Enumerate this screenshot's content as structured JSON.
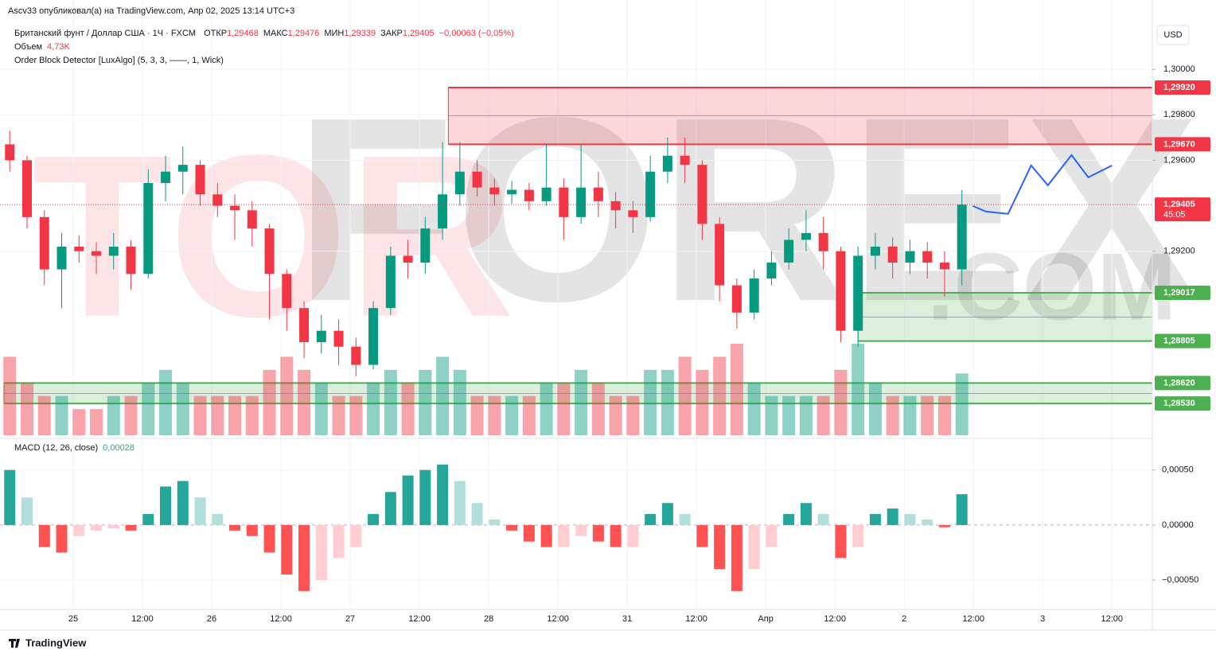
{
  "header": {
    "published": "Ascv33 опубликовал(а) на TradingView.com, Апр 02, 2025 13:14 UTC+3",
    "symbol": "Британский фунт / Доллар США · 1Ч · FXCM",
    "ohlc": [
      [
        "ОТКР",
        "1,29468"
      ],
      [
        "МАКС",
        "1,29476"
      ],
      [
        "МИН",
        "1,29339"
      ],
      [
        "ЗАКР",
        "1,29405"
      ]
    ],
    "change": "−0,00063 (−0,05%)",
    "volume_label": "Объем",
    "volume_value": "4,73K",
    "indicator": "Order Block Detector [LuxAlgo] (5, 3, 3, ——, 1, Wick)",
    "currency": "USD"
  },
  "watermark": [
    "TOR",
    "FOREX",
    ".COM"
  ],
  "footer": "TradingView",
  "chart_data": [
    {
      "type": "candlestick",
      "up_color": "#089981",
      "down_color": "#f23645",
      "x": [
        0,
        3,
        6,
        9,
        12,
        15,
        18,
        21,
        24,
        27,
        30,
        33,
        36,
        39,
        42,
        45,
        48,
        51,
        54,
        57,
        60,
        63,
        66,
        69,
        72,
        75,
        78,
        81,
        84,
        87,
        90,
        93,
        96,
        99,
        102,
        105,
        108,
        111,
        114,
        117,
        120,
        123,
        126,
        129,
        132,
        135,
        138,
        141,
        144,
        147,
        150,
        153,
        156,
        159,
        162,
        165
      ],
      "open": [
        1.2967,
        1.296,
        1.2935,
        1.2912,
        1.2922,
        1.292,
        1.2918,
        1.2922,
        1.291,
        1.295,
        1.2955,
        1.2958,
        1.2945,
        1.294,
        1.2938,
        1.293,
        1.291,
        1.2895,
        1.288,
        1.2885,
        1.2878,
        1.287,
        1.2895,
        1.2918,
        1.2915,
        1.293,
        1.2945,
        1.2955,
        1.2948,
        1.2945,
        1.2947,
        1.2942,
        1.2948,
        1.2935,
        1.2948,
        1.2942,
        1.2938,
        1.2935,
        1.2955,
        1.2962,
        1.2958,
        1.2932,
        1.2905,
        1.2893,
        1.2908,
        1.2915,
        1.2925,
        1.2928,
        1.292,
        1.2885,
        1.2918,
        1.2922,
        1.2915,
        1.292,
        1.2915,
        1.2912
      ],
      "high": [
        1.2973,
        1.2962,
        1.2938,
        1.2928,
        1.2927,
        1.2924,
        1.2928,
        1.2925,
        1.2956,
        1.2962,
        1.2966,
        1.296,
        1.295,
        1.2945,
        1.2942,
        1.2932,
        1.2912,
        1.2898,
        1.2892,
        1.289,
        1.2882,
        1.2898,
        1.2922,
        1.2925,
        1.2935,
        1.2968,
        1.2968,
        1.296,
        1.2952,
        1.2951,
        1.295,
        1.2967,
        1.2952,
        1.2967,
        1.2955,
        1.2946,
        1.2942,
        1.2962,
        1.297,
        1.297,
        1.296,
        1.2935,
        1.2908,
        1.2912,
        1.292,
        1.293,
        1.2938,
        1.2935,
        1.2922,
        1.2922,
        1.2928,
        1.2926,
        1.2925,
        1.2924,
        1.292,
        1.2947
      ],
      "low": [
        1.2955,
        1.293,
        1.2905,
        1.2895,
        1.2915,
        1.291,
        1.2912,
        1.2903,
        1.2908,
        1.2942,
        1.2945,
        1.294,
        1.2935,
        1.2925,
        1.2922,
        1.289,
        1.2885,
        1.2873,
        1.2875,
        1.287,
        1.2865,
        1.2868,
        1.2892,
        1.2908,
        1.291,
        1.2925,
        1.294,
        1.2944,
        1.294,
        1.2941,
        1.2938,
        1.294,
        1.2925,
        1.2932,
        1.2935,
        1.293,
        1.2928,
        1.2933,
        1.295,
        1.295,
        1.2925,
        1.2898,
        1.2886,
        1.289,
        1.2905,
        1.2912,
        1.292,
        1.2912,
        1.288,
        1.2878,
        1.2912,
        1.2908,
        1.291,
        1.2908,
        1.29,
        1.2905
      ],
      "close": [
        1.296,
        1.2935,
        1.2912,
        1.2922,
        1.292,
        1.2918,
        1.2922,
        1.291,
        1.295,
        1.2955,
        1.2958,
        1.2945,
        1.294,
        1.2938,
        1.293,
        1.291,
        1.2895,
        1.288,
        1.2885,
        1.2878,
        1.287,
        1.2895,
        1.2918,
        1.2915,
        1.293,
        1.2945,
        1.2955,
        1.2948,
        1.2945,
        1.2947,
        1.2942,
        1.2948,
        1.2935,
        1.2948,
        1.2942,
        1.2938,
        1.2935,
        1.2955,
        1.2962,
        1.2958,
        1.2932,
        1.2905,
        1.2893,
        1.2908,
        1.2915,
        1.2925,
        1.2928,
        1.292,
        1.2885,
        1.2918,
        1.2922,
        1.2915,
        1.292,
        1.2915,
        1.2912,
        1.29405
      ],
      "volume": [
        6,
        4,
        3,
        3,
        2,
        2,
        3,
        3,
        4,
        5,
        4,
        3,
        3,
        3,
        3,
        5,
        6,
        5,
        4,
        3,
        3,
        4,
        5,
        4,
        5,
        6,
        5,
        3,
        3,
        3,
        3,
        4,
        4,
        5,
        4,
        3,
        3,
        5,
        5,
        6,
        5,
        6,
        7,
        4,
        3,
        3,
        3,
        3,
        5,
        7,
        4,
        3,
        3,
        3,
        3,
        4.73
      ],
      "xlim": [
        -1,
        198
      ],
      "ylim": [
        1.2838,
        1.302
      ],
      "yticks": [
        {
          "value": 1.3,
          "label": "1,30000"
        },
        {
          "value": 1.298,
          "label": "1,29800"
        },
        {
          "value": 1.296,
          "label": "1,29600"
        },
        {
          "value": 1.292,
          "label": "1,29200"
        }
      ],
      "xticks": [
        {
          "value": 11,
          "label": "25"
        },
        {
          "value": 23,
          "label": "12:00"
        },
        {
          "value": 35,
          "label": "26"
        },
        {
          "value": 47,
          "label": "12:00"
        },
        {
          "value": 59,
          "label": "27"
        },
        {
          "value": 71,
          "label": "12:00"
        },
        {
          "value": 83,
          "label": "28"
        },
        {
          "value": 95,
          "label": "12:00"
        },
        {
          "value": 107,
          "label": "31"
        },
        {
          "value": 119,
          "label": "12:00"
        },
        {
          "value": 131,
          "label": "Апр"
        },
        {
          "value": 143,
          "label": "12:00"
        },
        {
          "value": 155,
          "label": "2"
        },
        {
          "value": 167,
          "label": "12:00"
        },
        {
          "value": 179,
          "label": "3"
        },
        {
          "value": 191,
          "label": "12:00"
        }
      ],
      "levels": [
        {
          "value": 1.2992,
          "label": "1,29920",
          "color": "#f23645"
        },
        {
          "value": 1.2967,
          "label": "1,29670",
          "color": "#f23645"
        },
        {
          "value": 1.29405,
          "label": "1,29405",
          "color": "#f23645",
          "countdown": "45:05"
        },
        {
          "value": 1.29017,
          "label": "1,29017",
          "color": "#4caf50"
        },
        {
          "value": 1.28805,
          "label": "1,28805",
          "color": "#4caf50"
        },
        {
          "value": 1.2862,
          "label": "1,28620",
          "color": "#4caf50"
        },
        {
          "value": 1.2853,
          "label": "1,28530",
          "color": "#4caf50"
        }
      ],
      "zones": [
        {
          "levels": [
            0,
            1
          ],
          "x0": 76
        },
        {
          "levels": [
            3,
            4
          ],
          "x0": 147
        },
        {
          "levels": [
            5,
            6
          ],
          "x0": -1
        }
      ],
      "projection": {
        "color": "#2962ff",
        "x": [
          166.9,
          169.1,
          173,
          177,
          179.9,
          184,
          186.9,
          191
        ],
        "y": [
          1.29399,
          1.29375,
          1.29364,
          1.29577,
          1.2949,
          1.29623,
          1.29525,
          1.29577
        ]
      }
    },
    {
      "type": "macd",
      "title": "MACD (12, 26, close)",
      "value_label": "0,00028",
      "colors": [
        "#26a69a",
        "#b2dfdb",
        "#ff5252",
        "#ffcdd2"
      ],
      "values": [
        0.0005,
        0.00025,
        -0.0002,
        -0.00025,
        -0.0001,
        -5e-05,
        -3e-05,
        -5e-05,
        0.0001,
        0.00035,
        0.0004,
        0.00025,
        0.0001,
        -5e-05,
        -0.0001,
        -0.00025,
        -0.00045,
        -0.0006,
        -0.0005,
        -0.0003,
        -0.0002,
        0.0001,
        0.0003,
        0.00045,
        0.0005,
        0.00055,
        0.0004,
        0.0002,
        5e-05,
        -5e-05,
        -0.00015,
        -0.0002,
        -0.0002,
        -0.0001,
        -0.00015,
        -0.0002,
        -0.0002,
        0.0001,
        0.0002,
        0.0001,
        -0.0002,
        -0.0004,
        -0.0006,
        -0.0004,
        -0.0002,
        0.0001,
        0.0002,
        0.0001,
        -0.0003,
        -0.0002,
        0.0001,
        0.00015,
        0.0001,
        5e-05,
        -2e-05,
        0.00028
      ],
      "ylim": [
        -0.00076,
        0.00078
      ],
      "yticks": [
        {
          "value": 0.0005,
          "label": "0,00050"
        },
        {
          "value": 0,
          "label": "0,00000"
        },
        {
          "value": -0.0005,
          "label": "−0,00050"
        }
      ]
    }
  ]
}
